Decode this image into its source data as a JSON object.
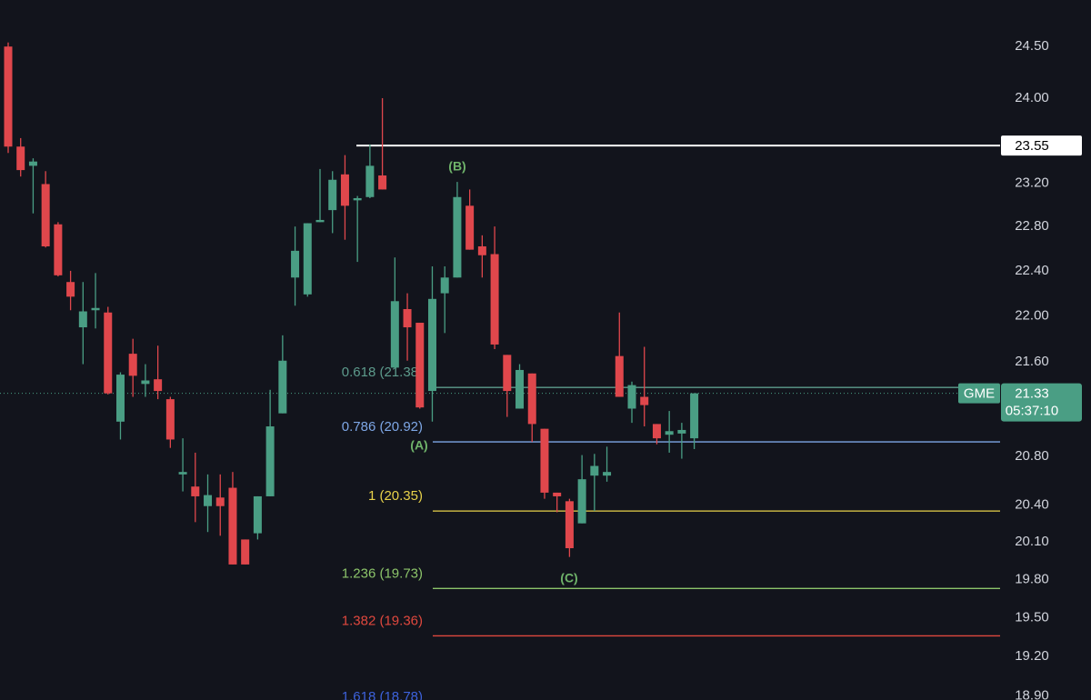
{
  "chart_data": {
    "type": "candlestick",
    "log_scale": true,
    "ylim": [
      18.87,
      24.96
    ],
    "yticks": [
      {
        "value": 24.5,
        "label": "24.50"
      },
      {
        "value": 24.0,
        "label": "24.00"
      },
      {
        "value": 23.2,
        "label": "23.20"
      },
      {
        "value": 22.8,
        "label": "22.80"
      },
      {
        "value": 22.4,
        "label": "22.40"
      },
      {
        "value": 22.0,
        "label": "22.00"
      },
      {
        "value": 21.6,
        "label": "21.60"
      },
      {
        "value": 20.8,
        "label": "20.80"
      },
      {
        "value": 20.4,
        "label": "20.40"
      },
      {
        "value": 20.1,
        "label": "20.10"
      },
      {
        "value": 19.8,
        "label": "19.80"
      },
      {
        "value": 19.5,
        "label": "19.50"
      },
      {
        "value": 19.2,
        "label": "19.20"
      },
      {
        "value": 18.9,
        "label": "18.90"
      }
    ],
    "series": {
      "up_color": "#4a9e84",
      "down_color": "#e0474c",
      "open": [
        24.5,
        23.54,
        23.36,
        23.19,
        22.82,
        22.3,
        21.9,
        22.05,
        22.03,
        21.09,
        21.67,
        21.41,
        21.45,
        21.28,
        20.65,
        20.55,
        20.39,
        20.46,
        20.54,
        20.12,
        20.17,
        20.47,
        21.16,
        22.34,
        22.19,
        22.84,
        22.95,
        23.28,
        23.04,
        23.07,
        23.27,
        21.55,
        22.06,
        21.94,
        21.35,
        22.2,
        22.34,
        22.99,
        22.62,
        22.55,
        21.66,
        21.2,
        21.5,
        21.03,
        20.5,
        20.43,
        20.25,
        20.64,
        20.64,
        21.65,
        21.2,
        21.3,
        21.07,
        20.98,
        20.99,
        20.95
      ],
      "high": [
        24.54,
        23.62,
        23.43,
        23.31,
        22.84,
        22.4,
        22.3,
        22.38,
        22.08,
        21.51,
        21.8,
        21.58,
        21.74,
        21.3,
        20.95,
        20.83,
        20.65,
        20.65,
        20.67,
        20.12,
        20.47,
        21.36,
        21.83,
        22.8,
        22.83,
        23.33,
        23.31,
        23.46,
        23.08,
        23.56,
        24.0,
        22.52,
        22.2,
        21.94,
        22.44,
        22.44,
        23.21,
        23.14,
        22.72,
        22.8,
        21.66,
        21.58,
        21.5,
        21.03,
        20.5,
        20.45,
        20.81,
        20.82,
        20.88,
        22.03,
        21.43,
        21.73,
        21.07,
        21.18,
        21.08,
        21.33
      ],
      "low": [
        23.48,
        23.26,
        22.92,
        22.61,
        22.35,
        22.05,
        21.58,
        21.89,
        21.32,
        20.94,
        21.3,
        21.3,
        21.28,
        20.87,
        20.51,
        20.26,
        20.18,
        20.15,
        19.92,
        19.92,
        20.12,
        20.47,
        21.16,
        22.09,
        22.17,
        22.84,
        22.74,
        22.68,
        22.48,
        23.06,
        23.14,
        21.55,
        21.61,
        21.2,
        21.09,
        21.85,
        22.34,
        22.59,
        22.34,
        21.71,
        21.13,
        21.2,
        20.92,
        20.45,
        20.34,
        19.98,
        20.25,
        20.35,
        20.59,
        21.3,
        21.08,
        21.05,
        20.9,
        20.83,
        20.78,
        20.86
      ],
      "close": [
        23.54,
        23.32,
        23.4,
        22.62,
        22.36,
        22.17,
        22.04,
        22.07,
        21.33,
        21.49,
        21.48,
        21.44,
        21.35,
        20.94,
        20.67,
        20.47,
        20.48,
        20.39,
        19.92,
        19.92,
        20.47,
        21.05,
        21.61,
        22.58,
        22.83,
        22.86,
        23.23,
        22.99,
        23.06,
        23.36,
        23.14,
        22.13,
        21.9,
        21.21,
        22.15,
        22.34,
        23.07,
        22.59,
        22.54,
        21.75,
        21.35,
        21.53,
        21.07,
        20.5,
        20.47,
        20.05,
        20.61,
        20.72,
        20.67,
        21.3,
        21.4,
        21.23,
        20.95,
        21.01,
        21.02,
        21.33
      ]
    },
    "price_line": {
      "value": 23.55,
      "color": "#ffffff"
    },
    "last_price": {
      "symbol": "GME",
      "value": 21.33,
      "countdown": "05:37:10",
      "color": "#4a9e84"
    },
    "fib_levels": [
      {
        "value": 21.38,
        "label": "0.618 (21.38)",
        "color": "#5d9b8c"
      },
      {
        "value": 20.92,
        "label": "0.786 (20.92)",
        "color": "#7ea7e6"
      },
      {
        "value": 20.35,
        "label": "1 (20.35)",
        "color": "#e8d24a"
      },
      {
        "value": 19.73,
        "label": "1.236 (19.73)",
        "color": "#8cc46a"
      },
      {
        "value": 19.36,
        "label": "1.382 (19.36)",
        "color": "#e0483e"
      },
      {
        "value": 18.78,
        "label": "1.618 (18.78)",
        "color": "#3d62dc"
      }
    ],
    "annotations": [
      "(B)",
      "(A)",
      "(C)"
    ],
    "annotation_color": "#6fb36a"
  }
}
